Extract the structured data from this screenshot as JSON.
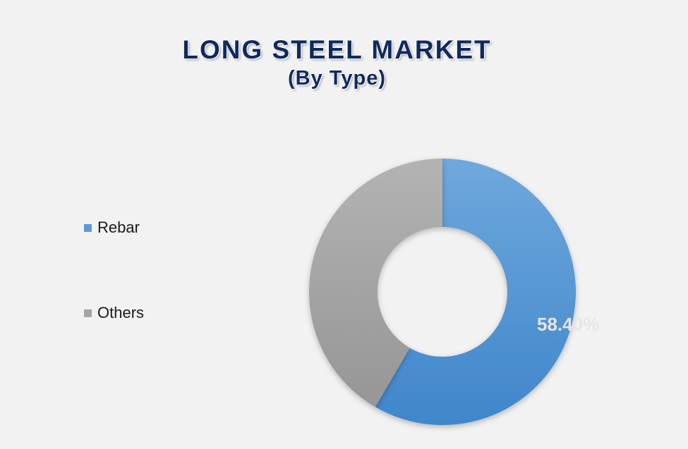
{
  "title": "LONG STEEL MARKET",
  "subtitle": "(By Type)",
  "colors": {
    "rebar": "#5b9bd5",
    "others": "#a5a5a5",
    "title": "#0f2a5c",
    "background": "#f2f2f2"
  },
  "chart_data": {
    "type": "pie",
    "variant": "donut",
    "title": "LONG STEEL MARKET",
    "subtitle": "(By Type)",
    "legend_position": "left",
    "series": [
      {
        "name": "Rebar",
        "value": 58.4,
        "data_label": "58.40%",
        "color": "#5b9bd5"
      },
      {
        "name": "Others",
        "value": 41.6,
        "data_label": "",
        "color": "#a5a5a5"
      }
    ]
  }
}
